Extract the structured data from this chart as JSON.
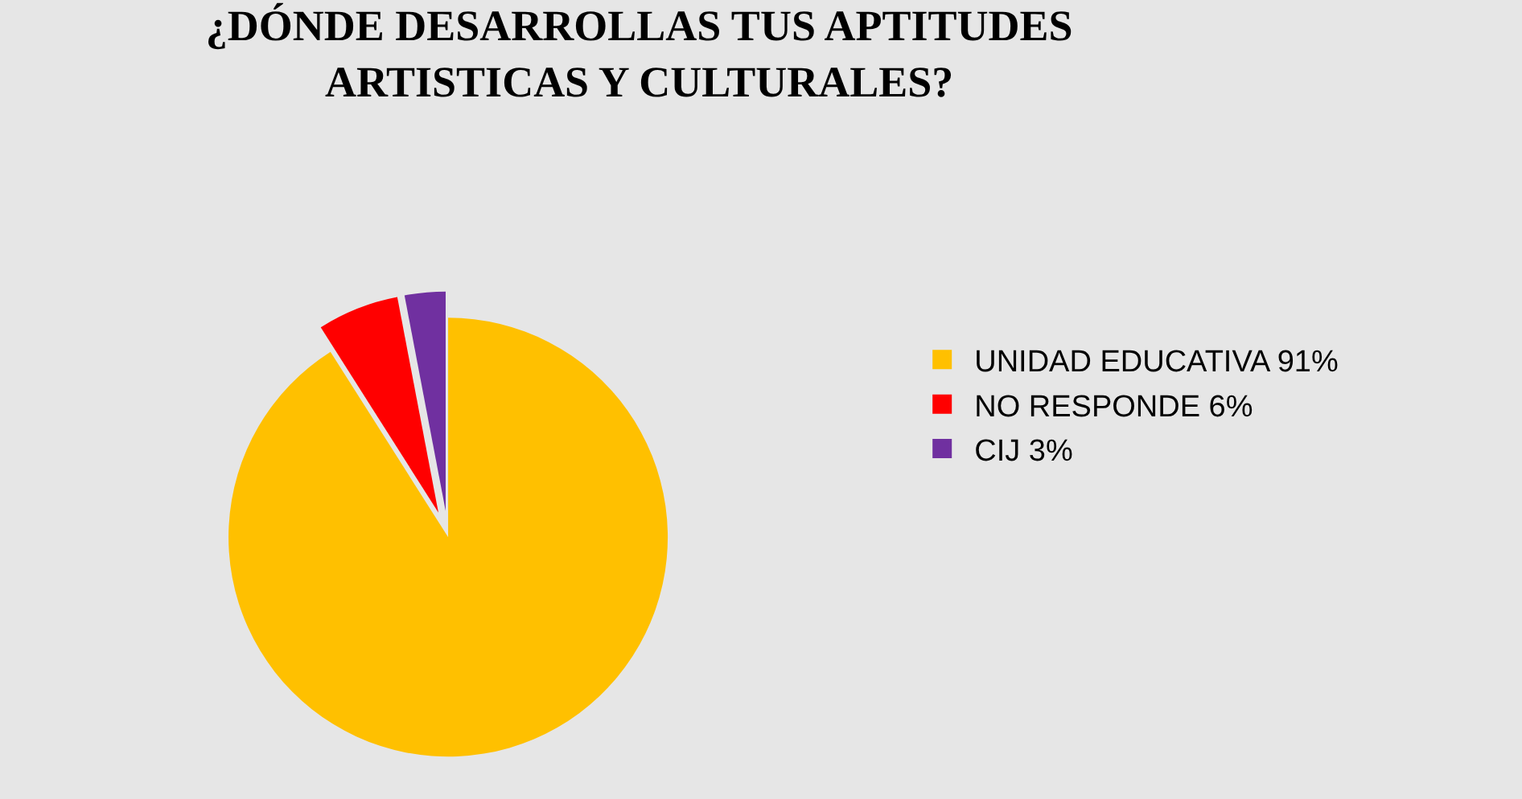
{
  "chart_data": {
    "type": "pie",
    "title": "¿DÓNDE DESARROLLAS TUS APTITUDES\nARTISTICAS Y CULTURALES?",
    "categories": [
      "UNIDAD EDUCATIVA 91%",
      "NO RESPONDE 6%",
      "CIJ 3%"
    ],
    "values": [
      91,
      6,
      3
    ],
    "colors": [
      "#ffc000",
      "#ff0000",
      "#7030a0"
    ],
    "legend": "right"
  }
}
